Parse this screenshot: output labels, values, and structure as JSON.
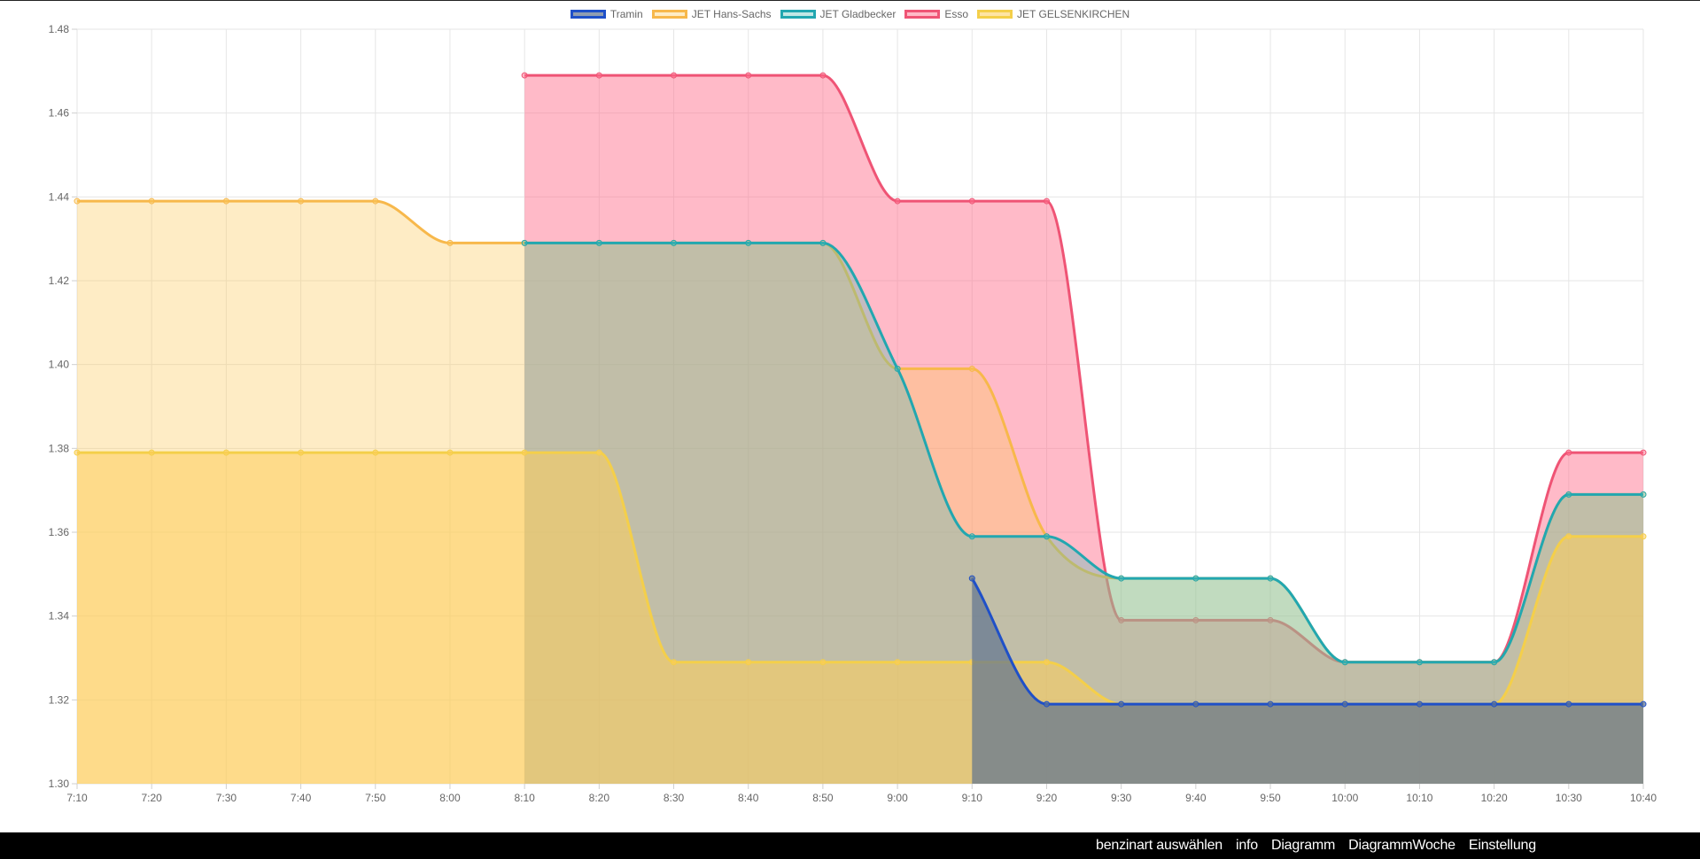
{
  "chart_data": {
    "type": "area",
    "x": [
      "7:10",
      "7:20",
      "7:30",
      "7:40",
      "7:50",
      "8:00",
      "8:10",
      "8:20",
      "8:30",
      "8:40",
      "8:50",
      "9:00",
      "9:10",
      "9:20",
      "9:30",
      "9:40",
      "9:50",
      "10:00",
      "10:10",
      "10:20",
      "10:30",
      "10:40"
    ],
    "ylim": [
      1.3,
      1.48
    ],
    "yticks": [
      "1.30",
      "1.32",
      "1.34",
      "1.36",
      "1.38",
      "1.40",
      "1.42",
      "1.44",
      "1.46",
      "1.48"
    ],
    "grid": true,
    "legend_position": "top-center",
    "series": [
      {
        "name": "Tramin",
        "color": "#1f50c8",
        "fill": "rgba(96,116,144,0.70)",
        "values": [
          null,
          null,
          null,
          null,
          null,
          null,
          null,
          null,
          null,
          null,
          null,
          null,
          1.349,
          1.319,
          1.319,
          1.319,
          1.319,
          1.319,
          1.319,
          1.319,
          1.319,
          1.319
        ]
      },
      {
        "name": "JET Hans-Sachs",
        "color": "#f7b84b",
        "fill": "rgba(253,200,90,0.35)",
        "values": [
          1.439,
          1.439,
          1.439,
          1.439,
          1.439,
          1.429,
          1.429,
          1.429,
          1.429,
          1.429,
          1.429,
          1.399,
          1.399,
          1.359,
          1.349,
          1.349,
          1.349,
          1.329,
          1.329,
          1.329,
          1.369,
          1.369
        ]
      },
      {
        "name": "JET Gladbecker",
        "color": "#22a7b0",
        "fill": "rgba(80,190,180,0.35)",
        "values": [
          null,
          null,
          null,
          null,
          null,
          null,
          1.429,
          1.429,
          1.429,
          1.429,
          1.429,
          1.399,
          1.359,
          1.359,
          1.349,
          1.349,
          1.349,
          1.329,
          1.329,
          1.329,
          1.369,
          1.369
        ]
      },
      {
        "name": "Esso",
        "color": "#ef5475",
        "fill": "rgba(255,110,140,0.48)",
        "values": [
          null,
          null,
          null,
          null,
          null,
          null,
          1.469,
          1.469,
          1.469,
          1.469,
          1.469,
          1.439,
          1.439,
          1.439,
          1.339,
          1.339,
          1.339,
          1.329,
          1.329,
          1.329,
          1.379,
          1.379
        ]
      },
      {
        "name": "JET GELSENKIRCHEN",
        "color": "#f4cf4a",
        "fill": "rgba(253,205,90,0.55)",
        "values": [
          1.379,
          1.379,
          1.379,
          1.379,
          1.379,
          1.379,
          1.379,
          1.379,
          1.329,
          1.329,
          1.329,
          1.329,
          1.329,
          1.329,
          1.319,
          1.319,
          1.319,
          1.319,
          1.319,
          1.319,
          1.359,
          1.359
        ]
      }
    ]
  },
  "navbar": {
    "links": [
      "benzinart auswählen",
      "info",
      "Diagramm",
      "DiagrammWoche",
      "Einstellung"
    ]
  }
}
